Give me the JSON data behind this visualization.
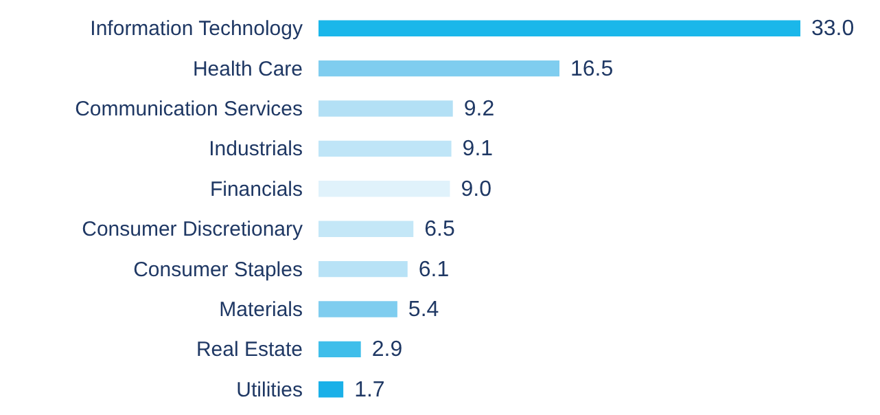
{
  "chart_data": {
    "type": "bar",
    "orientation": "horizontal",
    "categories": [
      "Information Technology",
      "Health Care",
      "Communication Services",
      "Industrials",
      "Financials",
      "Consumer Discretionary",
      "Consumer Staples",
      "Materials",
      "Real Estate",
      "Utilities"
    ],
    "values": [
      33.0,
      16.5,
      9.2,
      9.1,
      9.0,
      6.5,
      6.1,
      5.4,
      2.9,
      1.7
    ],
    "value_labels": [
      "33.0",
      "16.5",
      "9.2",
      "9.1",
      "9.0",
      "6.5",
      "6.1",
      "5.4",
      "2.9",
      "1.7"
    ],
    "colors": [
      "#1ab7ea",
      "#7fcdef",
      "#b3e0f5",
      "#bfe5f7",
      "#e0f2fb",
      "#c4e7f7",
      "#b8e2f6",
      "#7fcdef",
      "#3fbeea",
      "#1ab0e8"
    ],
    "grid": false
  }
}
